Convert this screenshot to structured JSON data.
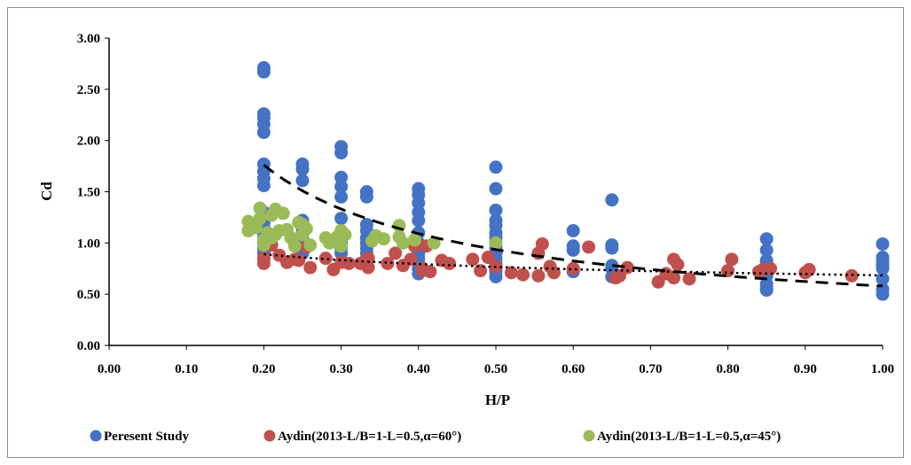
{
  "chart_data": {
    "type": "scatter",
    "title": "",
    "xlabel": "H/P",
    "ylabel": "Cd",
    "xlim": [
      0,
      1
    ],
    "ylim": [
      0,
      3
    ],
    "x_ticks": [
      "0.00",
      "0.10",
      "0.20",
      "0.30",
      "0.40",
      "0.50",
      "0.60",
      "0.70",
      "0.80",
      "0.90",
      "1.00"
    ],
    "y_ticks": [
      "0.00",
      "0.50",
      "1.00",
      "1.50",
      "2.00",
      "2.50",
      "3.00"
    ],
    "grid": false,
    "legend_position": "bottom",
    "series": [
      {
        "name": "Peresent Study",
        "color": "#4472C4",
        "points": [
          [
            0.2,
            2.71
          ],
          [
            0.2,
            2.67
          ],
          [
            0.2,
            2.26
          ],
          [
            0.2,
            2.22
          ],
          [
            0.2,
            2.16
          ],
          [
            0.2,
            2.08
          ],
          [
            0.2,
            1.77
          ],
          [
            0.2,
            1.7
          ],
          [
            0.2,
            1.63
          ],
          [
            0.2,
            1.56
          ],
          [
            0.2,
            1.3
          ],
          [
            0.2,
            1.25
          ],
          [
            0.2,
            1.2
          ],
          [
            0.2,
            1.15
          ],
          [
            0.2,
            1.1
          ],
          [
            0.2,
            1.05
          ],
          [
            0.2,
            1.0
          ],
          [
            0.2,
            0.95
          ],
          [
            0.2,
            0.9
          ],
          [
            0.2,
            0.85
          ],
          [
            0.25,
            1.77
          ],
          [
            0.25,
            1.72
          ],
          [
            0.25,
            1.61
          ],
          [
            0.25,
            1.22
          ],
          [
            0.25,
            1.15
          ],
          [
            0.25,
            1.1
          ],
          [
            0.25,
            1.05
          ],
          [
            0.25,
            1.0
          ],
          [
            0.25,
            0.95
          ],
          [
            0.25,
            0.9
          ],
          [
            0.3,
            1.94
          ],
          [
            0.3,
            1.88
          ],
          [
            0.3,
            1.64
          ],
          [
            0.3,
            1.55
          ],
          [
            0.3,
            1.45
          ],
          [
            0.3,
            1.24
          ],
          [
            0.3,
            1.1
          ],
          [
            0.3,
            1.0
          ],
          [
            0.3,
            0.95
          ],
          [
            0.3,
            0.9
          ],
          [
            0.333,
            1.5
          ],
          [
            0.333,
            1.45
          ],
          [
            0.333,
            1.18
          ],
          [
            0.333,
            1.12
          ],
          [
            0.333,
            1.05
          ],
          [
            0.333,
            1.0
          ],
          [
            0.333,
            0.95
          ],
          [
            0.333,
            0.9
          ],
          [
            0.333,
            0.85
          ],
          [
            0.333,
            0.8
          ],
          [
            0.4,
            1.53
          ],
          [
            0.4,
            1.47
          ],
          [
            0.4,
            1.39
          ],
          [
            0.4,
            1.3
          ],
          [
            0.4,
            1.22
          ],
          [
            0.4,
            1.1
          ],
          [
            0.4,
            1.0
          ],
          [
            0.4,
            0.95
          ],
          [
            0.4,
            0.9
          ],
          [
            0.4,
            0.85
          ],
          [
            0.4,
            0.8
          ],
          [
            0.4,
            0.75
          ],
          [
            0.4,
            0.7
          ],
          [
            0.5,
            1.74
          ],
          [
            0.5,
            1.53
          ],
          [
            0.5,
            1.32
          ],
          [
            0.5,
            1.22
          ],
          [
            0.5,
            1.17
          ],
          [
            0.5,
            1.1
          ],
          [
            0.5,
            1.05
          ],
          [
            0.5,
            1.0
          ],
          [
            0.5,
            0.95
          ],
          [
            0.5,
            0.9
          ],
          [
            0.5,
            0.85
          ],
          [
            0.5,
            0.8
          ],
          [
            0.5,
            0.75
          ],
          [
            0.5,
            0.72
          ],
          [
            0.5,
            0.67
          ],
          [
            0.6,
            1.12
          ],
          [
            0.6,
            0.97
          ],
          [
            0.6,
            0.93
          ],
          [
            0.6,
            0.72
          ],
          [
            0.65,
            1.42
          ],
          [
            0.65,
            0.98
          ],
          [
            0.65,
            0.95
          ],
          [
            0.65,
            0.78
          ],
          [
            0.65,
            0.75
          ],
          [
            0.65,
            0.67
          ],
          [
            0.85,
            1.04
          ],
          [
            0.85,
            0.93
          ],
          [
            0.85,
            0.83
          ],
          [
            0.85,
            0.8
          ],
          [
            0.85,
            0.75
          ],
          [
            0.85,
            0.68
          ],
          [
            0.85,
            0.6
          ],
          [
            0.85,
            0.56
          ],
          [
            0.85,
            0.54
          ],
          [
            1.0,
            0.99
          ],
          [
            1.0,
            0.86
          ],
          [
            1.0,
            0.82
          ],
          [
            1.0,
            0.78
          ],
          [
            1.0,
            0.75
          ],
          [
            1.0,
            0.65
          ],
          [
            1.0,
            0.55
          ],
          [
            1.0,
            0.5
          ]
        ]
      },
      {
        "name": "Aydin(2013-L/B=1-L=0.5,α=60°)",
        "color": "#C0504D",
        "points": [
          [
            0.2,
            0.8
          ],
          [
            0.2,
            0.85
          ],
          [
            0.21,
            0.98
          ],
          [
            0.22,
            0.88
          ],
          [
            0.23,
            0.81
          ],
          [
            0.24,
            0.84
          ],
          [
            0.245,
            0.83
          ],
          [
            0.255,
            0.96
          ],
          [
            0.26,
            0.76
          ],
          [
            0.28,
            0.85
          ],
          [
            0.29,
            0.74
          ],
          [
            0.3,
            0.81
          ],
          [
            0.31,
            0.8
          ],
          [
            0.325,
            0.8
          ],
          [
            0.335,
            0.76
          ],
          [
            0.335,
            0.85
          ],
          [
            0.36,
            0.8
          ],
          [
            0.37,
            0.9
          ],
          [
            0.38,
            0.78
          ],
          [
            0.39,
            0.84
          ],
          [
            0.395,
            0.97
          ],
          [
            0.405,
            0.73
          ],
          [
            0.405,
            0.75
          ],
          [
            0.41,
            0.97
          ],
          [
            0.415,
            0.72
          ],
          [
            0.43,
            0.83
          ],
          [
            0.44,
            0.8
          ],
          [
            0.47,
            0.84
          ],
          [
            0.48,
            0.73
          ],
          [
            0.49,
            0.86
          ],
          [
            0.5,
            0.77
          ],
          [
            0.52,
            0.71
          ],
          [
            0.535,
            0.69
          ],
          [
            0.555,
            0.68
          ],
          [
            0.555,
            0.9
          ],
          [
            0.56,
            0.99
          ],
          [
            0.57,
            0.77
          ],
          [
            0.575,
            0.71
          ],
          [
            0.6,
            0.75
          ],
          [
            0.62,
            0.96
          ],
          [
            0.655,
            0.66
          ],
          [
            0.66,
            0.68
          ],
          [
            0.67,
            0.76
          ],
          [
            0.71,
            0.62
          ],
          [
            0.72,
            0.7
          ],
          [
            0.73,
            0.84
          ],
          [
            0.73,
            0.66
          ],
          [
            0.735,
            0.79
          ],
          [
            0.75,
            0.65
          ],
          [
            0.8,
            0.73
          ],
          [
            0.805,
            0.84
          ],
          [
            0.84,
            0.72
          ],
          [
            0.845,
            0.74
          ],
          [
            0.855,
            0.75
          ],
          [
            0.9,
            0.71
          ],
          [
            0.905,
            0.74
          ],
          [
            0.96,
            0.68
          ]
        ]
      },
      {
        "name": "Aydin(2013-L/B=1-L=0.5,α=45°)",
        "color": "#9BBB59",
        "points": [
          [
            0.18,
            1.21
          ],
          [
            0.18,
            1.12
          ],
          [
            0.19,
            1.15
          ],
          [
            0.195,
            1.34
          ],
          [
            0.195,
            1.24
          ],
          [
            0.2,
            1.03
          ],
          [
            0.2,
            0.98
          ],
          [
            0.205,
            1.1
          ],
          [
            0.21,
            1.05
          ],
          [
            0.21,
            1.27
          ],
          [
            0.215,
            1.33
          ],
          [
            0.215,
            1.08
          ],
          [
            0.22,
            1.12
          ],
          [
            0.225,
            1.29
          ],
          [
            0.23,
            1.13
          ],
          [
            0.235,
            1.05
          ],
          [
            0.24,
            0.97
          ],
          [
            0.245,
            1.2
          ],
          [
            0.25,
            1.18
          ],
          [
            0.25,
            1.08
          ],
          [
            0.255,
            1.14
          ],
          [
            0.26,
            0.98
          ],
          [
            0.28,
            1.05
          ],
          [
            0.285,
            1.0
          ],
          [
            0.29,
            1.02
          ],
          [
            0.295,
            1.06
          ],
          [
            0.3,
            1.12
          ],
          [
            0.3,
            1.05
          ],
          [
            0.3,
            0.97
          ],
          [
            0.305,
            1.08
          ],
          [
            0.34,
            1.02
          ],
          [
            0.345,
            1.07
          ],
          [
            0.355,
            1.04
          ],
          [
            0.375,
            1.17
          ],
          [
            0.375,
            1.06
          ],
          [
            0.38,
            1.0
          ],
          [
            0.395,
            1.03
          ],
          [
            0.42,
            1.0
          ],
          [
            0.5,
            1.0
          ]
        ]
      }
    ],
    "trendlines": [
      {
        "series": "Peresent Study",
        "style": "dashed",
        "type": "power",
        "a": 0.58,
        "b": -0.69,
        "x_range": [
          0.2,
          1.0
        ]
      },
      {
        "series": "Aydin(2013-L/B=1-L=0.5,α=60°)",
        "style": "dotted",
        "type": "power",
        "a": 0.684,
        "b": -0.164,
        "x_range": [
          0.2,
          1.0
        ]
      }
    ]
  }
}
